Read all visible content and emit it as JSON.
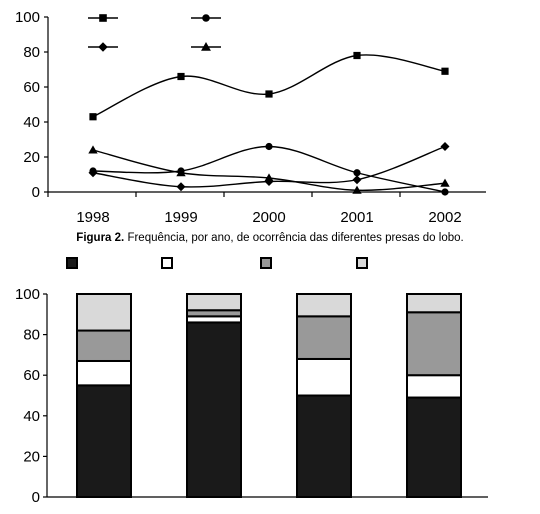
{
  "caption": {
    "label": "Figura 2.",
    "text": "Frequência, por ano, de ocorrência das diferentes presas do lobo."
  },
  "chart_data": [
    {
      "type": "line",
      "x": [
        "1998",
        "1999",
        "2000",
        "2001",
        "2002"
      ],
      "ylim": [
        0,
        100
      ],
      "yticks": [
        0,
        20,
        40,
        60,
        80,
        100
      ],
      "grid": false,
      "legend_position": "top-left",
      "series": [
        {
          "marker": "square",
          "color": "#000000",
          "values": [
            43,
            66,
            56,
            78,
            69
          ]
        },
        {
          "marker": "circle",
          "color": "#000000",
          "values": [
            12,
            12,
            26,
            11,
            0
          ]
        },
        {
          "marker": "diamond",
          "color": "#000000",
          "values": [
            11,
            3,
            6,
            7,
            26
          ]
        },
        {
          "marker": "triangle",
          "color": "#000000",
          "values": [
            24,
            11,
            8,
            1,
            5
          ]
        }
      ]
    },
    {
      "type": "bar",
      "stacked": true,
      "ylim": [
        0,
        100
      ],
      "yticks": [
        0,
        20,
        40,
        60,
        80,
        100
      ],
      "grid": false,
      "legend_position": "top",
      "bar_count": 4,
      "series": [
        {
          "color": "#1a1a1a",
          "values": [
            55,
            86,
            50,
            49
          ]
        },
        {
          "color": "#ffffff",
          "values": [
            12,
            3,
            18,
            11
          ]
        },
        {
          "color": "#999999",
          "values": [
            15,
            3,
            21,
            31
          ]
        },
        {
          "color": "#d9d9d9",
          "values": [
            18,
            8,
            11,
            9
          ]
        }
      ]
    }
  ]
}
